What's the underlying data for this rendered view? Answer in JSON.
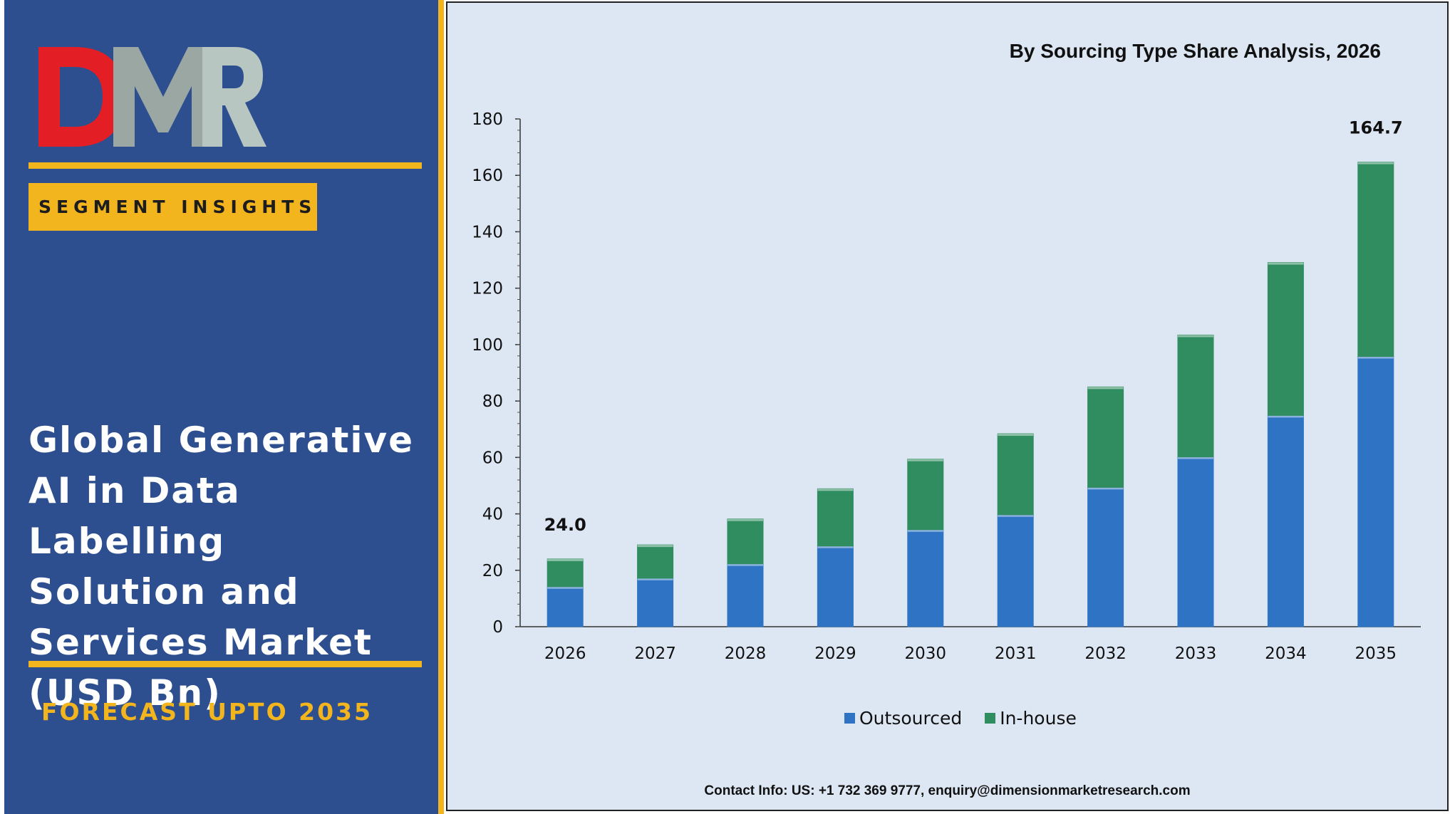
{
  "brand": {
    "logo_text": "DMR",
    "logo_colors": {
      "D": "#e31e24",
      "M": "#9aa7a3",
      "R": "#b8c6c2"
    }
  },
  "badge": {
    "label": "SEGMENT INSIGHTS"
  },
  "title": {
    "lines": [
      "Global Generative",
      "AI in Data Labelling",
      "Solution and",
      "Services Market",
      "(USD Bn)"
    ]
  },
  "forecast": {
    "label": "FORECAST UPTO 2035"
  },
  "chart_heading": "By Sourcing Type Share Analysis, 2026",
  "contact": "Contact Info: US: +1 732 369 9777, enquiry@dimensionmarketresearch.com",
  "colors": {
    "panel_bg": "#2e4f8f",
    "accent": "#f2b51d",
    "chart_bg": "#dde7f3",
    "outsourced": "#2f74c4",
    "inhouse": "#2f8d5f"
  },
  "chart_data": {
    "type": "bar",
    "stacked": true,
    "title": "By Sourcing Type Share Analysis, 2026",
    "categories": [
      "2026",
      "2027",
      "2028",
      "2029",
      "2030",
      "2031",
      "2032",
      "2033",
      "2034",
      "2035"
    ],
    "series": [
      {
        "name": "Outsourced",
        "color": "#2f74c4",
        "values": [
          14.2,
          17.2,
          22.3,
          28.6,
          34.4,
          39.7,
          49.4,
          60.2,
          74.9,
          95.8
        ]
      },
      {
        "name": "In-house",
        "color": "#2f8d5f",
        "values": [
          9.8,
          11.8,
          15.9,
          20.3,
          25.0,
          28.7,
          35.6,
          43.2,
          54.2,
          68.9
        ]
      }
    ],
    "totals_labeled": {
      "2026": "24.0",
      "2035": "164.7"
    },
    "ylim": [
      0,
      180
    ],
    "yticks": [
      0,
      20,
      40,
      60,
      80,
      100,
      120,
      140,
      160,
      180
    ],
    "xlabel": "",
    "ylabel": "",
    "legend_position": "bottom",
    "grid": false
  }
}
